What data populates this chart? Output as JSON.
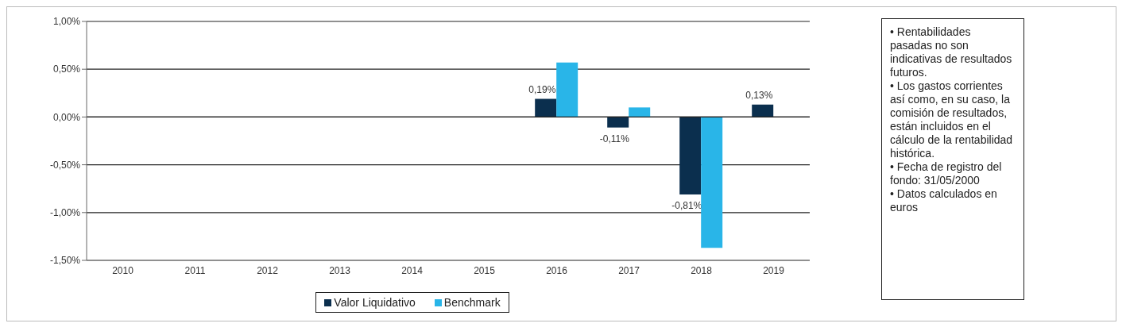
{
  "chart_data": {
    "type": "bar",
    "categories": [
      "2010",
      "2011",
      "2012",
      "2013",
      "2014",
      "2015",
      "2016",
      "2017",
      "2018",
      "2019"
    ],
    "series": [
      {
        "name": "Valor Liquidativo",
        "color": "#0b2f4e",
        "values": [
          null,
          null,
          null,
          null,
          null,
          null,
          0.19,
          -0.11,
          -0.81,
          0.13
        ],
        "value_labels": [
          null,
          null,
          null,
          null,
          null,
          null,
          "0,19%",
          "-0,11%",
          "-0,81%",
          "0,13%"
        ]
      },
      {
        "name": "Benchmark",
        "color": "#29b5e8",
        "values": [
          null,
          null,
          null,
          null,
          null,
          null,
          0.57,
          0.1,
          -1.37,
          null
        ]
      }
    ],
    "ylim": [
      -1.5,
      1
    ],
    "yticks": [
      {
        "value": -1.5,
        "label": "-1,50%"
      },
      {
        "value": -1,
        "label": "-1,00%"
      },
      {
        "value": -0.5,
        "label": "-0,50%"
      },
      {
        "value": 0,
        "label": "0,00%"
      },
      {
        "value": 0.5,
        "label": "0,50%"
      },
      {
        "value": 1,
        "label": "1,00%"
      }
    ],
    "grid": "y",
    "legend": "bottom",
    "annotations": [
      "• Rentabilidades pasadas no son indicativas de resultados futuros.",
      "• Los gastos corrientes así como, en su caso, la comisión de resultados, están incluidos en el cálculo de la rentabilidad histórica.",
      "• Fecha de registro del fondo: 31/05/2000",
      "• Datos calculados en euros"
    ]
  }
}
